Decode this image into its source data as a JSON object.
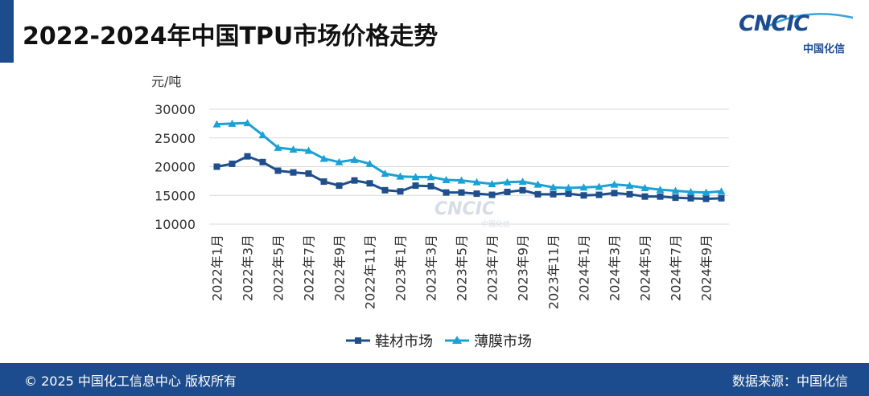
{
  "header": {
    "title": "2022-2024年中国TPU市场价格走势",
    "logo_text": "CNCIC",
    "logo_subtitle": "中国化信"
  },
  "watermark": {
    "text": "CNCIC",
    "subtitle": "中国化信"
  },
  "footer": {
    "copyright": "© 2025  中国化工信息中心  版权所有",
    "source": "数据来源：中国化信"
  },
  "colors": {
    "brand": "#1d4c8e",
    "series1": "#1f4e8c",
    "series2": "#1ba1d6",
    "grid": "#d9d9d9"
  },
  "chart_data": {
    "type": "line",
    "title": "",
    "ylabel": "元/吨",
    "xlabel": "",
    "ylim": [
      10000,
      30000
    ],
    "yticks": [
      10000,
      15000,
      20000,
      25000,
      30000
    ],
    "grid": true,
    "legend_position": "bottom",
    "categories": [
      "2022年1月",
      "2022年2月",
      "2022年3月",
      "2022年4月",
      "2022年5月",
      "2022年6月",
      "2022年7月",
      "2022年8月",
      "2022年9月",
      "2022年10月",
      "2022年11月",
      "2022年12月",
      "2023年1月",
      "2023年2月",
      "2023年3月",
      "2023年4月",
      "2023年5月",
      "2023年6月",
      "2023年7月",
      "2023年8月",
      "2023年9月",
      "2023年10月",
      "2023年11月",
      "2023年12月",
      "2024年1月",
      "2024年2月",
      "2024年3月",
      "2024年4月",
      "2024年5月",
      "2024年6月",
      "2024年7月",
      "2024年8月",
      "2024年9月",
      "2024年10月"
    ],
    "tick_labels": [
      "2022年1月",
      "2022年3月",
      "2022年5月",
      "2022年7月",
      "2022年9月",
      "2022年11月",
      "2023年1月",
      "2023年3月",
      "2023年5月",
      "2023年7月",
      "2023年9月",
      "2023年11月",
      "2024年1月",
      "2024年3月",
      "2024年5月",
      "2024年7月",
      "2024年9月"
    ],
    "series": [
      {
        "name": "鞋材市场",
        "marker": "square",
        "values": [
          20000,
          20500,
          21800,
          20800,
          19300,
          19000,
          18800,
          17400,
          16700,
          17600,
          17100,
          15900,
          15700,
          16700,
          16600,
          15500,
          15500,
          15300,
          15100,
          15600,
          15900,
          15200,
          15200,
          15300,
          15000,
          15100,
          15400,
          15200,
          14800,
          14800,
          14600,
          14500,
          14400,
          14500
        ]
      },
      {
        "name": "薄膜市场",
        "marker": "triangle",
        "values": [
          27400,
          27500,
          27600,
          25500,
          23300,
          23000,
          22800,
          21400,
          20800,
          21200,
          20500,
          18800,
          18300,
          18200,
          18200,
          17700,
          17600,
          17300,
          17000,
          17300,
          17400,
          16900,
          16400,
          16300,
          16400,
          16500,
          16900,
          16700,
          16300,
          16000,
          15800,
          15600,
          15500,
          15700
        ]
      }
    ]
  }
}
